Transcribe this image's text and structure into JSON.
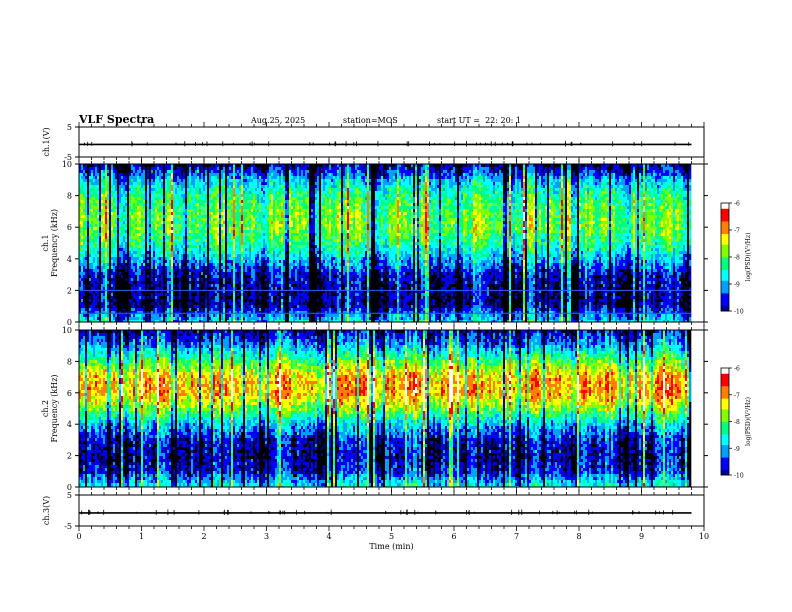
{
  "header": {
    "title": "VLF Spectra",
    "date": "Aug.25, 2025",
    "station": "station=MOS",
    "start": "start UT =  22: 20: 1"
  },
  "chart_data": [
    {
      "type": "line",
      "name": "ch1-waveform",
      "ylabel": "ch.1(V)",
      "ylim": [
        -5,
        5
      ],
      "ytick_labels": [
        "5",
        "-5"
      ],
      "xlim": [
        0,
        10
      ],
      "baseline_value": -0.8
    },
    {
      "type": "heatmap",
      "name": "ch1-spectrogram",
      "ylabel_channel": "ch.1",
      "ylabel": "Frequency (kHz)",
      "ylim": [
        0,
        10
      ],
      "ytick_labels": [
        "0",
        "2",
        "4",
        "6",
        "8",
        "10"
      ],
      "xlim": [
        0,
        9.8
      ],
      "colorbar": {
        "label": "log(PSD)(V²/Hz)",
        "range": [
          -10,
          -6
        ],
        "tick_labels": [
          "-6",
          "-7",
          "-8",
          "-9",
          "-10"
        ],
        "colors": [
          "#000090",
          "#0000ff",
          "#00a0ff",
          "#00ffff",
          "#00ff80",
          "#80ff00",
          "#ffff00",
          "#ff8000",
          "#ff0000",
          "#ffffff"
        ]
      },
      "band_profile": [
        {
          "kHz": 0.0,
          "log_psd": -8.8
        },
        {
          "kHz": 0.5,
          "log_psd": -9.3
        },
        {
          "kHz": 1.0,
          "log_psd": -9.9
        },
        {
          "kHz": 2.0,
          "log_psd": -9.9
        },
        {
          "kHz": 3.0,
          "log_psd": -9.7
        },
        {
          "kHz": 4.0,
          "log_psd": -9.0
        },
        {
          "kHz": 5.0,
          "log_psd": -8.3
        },
        {
          "kHz": 6.0,
          "log_psd": -7.9
        },
        {
          "kHz": 7.0,
          "log_psd": -8.0
        },
        {
          "kHz": 8.0,
          "log_psd": -8.3
        },
        {
          "kHz": 9.0,
          "log_psd": -9.0
        },
        {
          "kHz": 10.0,
          "log_psd": -10.0
        }
      ]
    },
    {
      "type": "heatmap",
      "name": "ch2-spectrogram",
      "ylabel_channel": "ch.2",
      "ylabel": "Frequency (kHz)",
      "ylim": [
        0,
        10
      ],
      "ytick_labels": [
        "0",
        "2",
        "4",
        "6",
        "8",
        "10"
      ],
      "xlim": [
        0,
        9.8
      ],
      "colorbar": {
        "label": "log(PSD)(V²/Hz)",
        "range": [
          -10,
          -6
        ],
        "tick_labels": [
          "-6",
          "-7",
          "-8",
          "-9",
          "-10"
        ],
        "colors": [
          "#000090",
          "#0000ff",
          "#00a0ff",
          "#00ffff",
          "#00ff80",
          "#80ff00",
          "#ffff00",
          "#ff8000",
          "#ff0000",
          "#ffffff"
        ]
      },
      "band_profile": [
        {
          "kHz": 0.0,
          "log_psd": -8.6
        },
        {
          "kHz": 1.0,
          "log_psd": -9.6
        },
        {
          "kHz": 2.0,
          "log_psd": -9.8
        },
        {
          "kHz": 3.0,
          "log_psd": -9.6
        },
        {
          "kHz": 4.0,
          "log_psd": -8.9
        },
        {
          "kHz": 5.0,
          "log_psd": -7.8
        },
        {
          "kHz": 6.0,
          "log_psd": -7.0
        },
        {
          "kHz": 7.0,
          "log_psd": -7.1
        },
        {
          "kHz": 8.0,
          "log_psd": -8.0
        },
        {
          "kHz": 9.0,
          "log_psd": -9.1
        },
        {
          "kHz": 10.0,
          "log_psd": -9.8
        }
      ]
    },
    {
      "type": "line",
      "name": "ch3-waveform",
      "ylabel": "ch.3(V)",
      "ylim": [
        -5,
        5
      ],
      "ytick_labels": [
        "5",
        "-5"
      ],
      "xlim": [
        0,
        10
      ],
      "baseline_value": -0.8
    }
  ],
  "x_axis": {
    "label": "Time (min)",
    "range": [
      0,
      10
    ],
    "tick_labels": [
      "0",
      "1",
      "2",
      "3",
      "4",
      "5",
      "6",
      "7",
      "8",
      "9",
      "10"
    ]
  }
}
